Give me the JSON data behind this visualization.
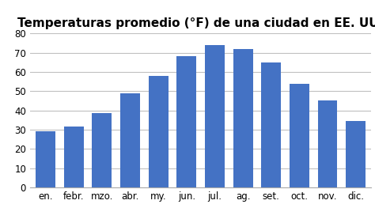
{
  "title": "Temperaturas promedio (°F) de una ciudad en EE. UU.",
  "categories": [
    "en.",
    "febr.",
    "mzo.",
    "abr.",
    "my.",
    "jun.",
    "jul.",
    "ag.",
    "set.",
    "oct.",
    "nov.",
    "dic."
  ],
  "values": [
    29,
    31.5,
    38.5,
    49,
    58,
    68,
    74,
    72,
    65,
    54,
    45,
    34.5
  ],
  "bar_color": "#4472C4",
  "ylim": [
    0,
    80
  ],
  "yticks": [
    0,
    10,
    20,
    30,
    40,
    50,
    60,
    70,
    80
  ],
  "title_fontsize": 11,
  "tick_fontsize": 8.5,
  "background_color": "#ffffff"
}
